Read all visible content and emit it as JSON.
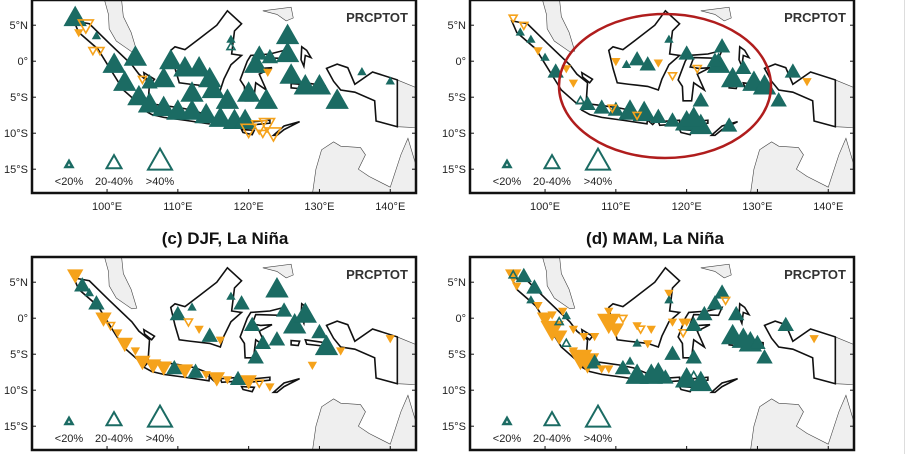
{
  "colors": {
    "wet": "#1b6b63",
    "dry": "#f5a21b",
    "highlight": "#b01d1d",
    "neighbor_land": "#efefef"
  },
  "panel_titles": [
    "(c) DJF, La Niña",
    "(d) MAM, La Niña"
  ],
  "index_label": "PRCPTOT",
  "legend": [
    "<20%",
    "20-40%",
    ">40%"
  ],
  "lat_ticks": [
    {
      "v": 5,
      "label": "5°N"
    },
    {
      "v": 0,
      "label": "0°"
    },
    {
      "v": -5,
      "label": "5°S"
    },
    {
      "v": -10,
      "label": "10°S"
    },
    {
      "v": -15,
      "label": "15°S"
    }
  ],
  "lon_ticks": [
    {
      "v": 100,
      "label": "100°E"
    },
    {
      "v": 110,
      "label": "110°E"
    },
    {
      "v": 120,
      "label": "120°E"
    },
    {
      "v": 130,
      "label": "130°E"
    },
    {
      "v": 140,
      "label": "140°E"
    }
  ],
  "panels": [
    {
      "id": "a",
      "show_title": false,
      "show_xticks": true,
      "highlight": false,
      "stations": [
        [
          95.5,
          6,
          3,
          "up",
          1
        ],
        [
          98.5,
          3.5,
          1,
          "up",
          1
        ],
        [
          117.5,
          3,
          1,
          "up",
          1
        ],
        [
          117.5,
          2,
          1,
          "up",
          0
        ],
        [
          101,
          -0.5,
          3,
          "up",
          1
        ],
        [
          102.5,
          -3,
          3,
          "up",
          1
        ],
        [
          104,
          0.5,
          3,
          "up",
          1
        ],
        [
          109,
          0,
          3,
          "up",
          1
        ],
        [
          111,
          -1,
          3,
          "up",
          1
        ],
        [
          113,
          -1,
          3,
          "up",
          1
        ],
        [
          114.5,
          -2.5,
          3,
          "up",
          1
        ],
        [
          108,
          -2.5,
          3,
          "up",
          1
        ],
        [
          106,
          -3,
          2,
          "up",
          1
        ],
        [
          104.5,
          -5,
          3,
          "up",
          1
        ],
        [
          106,
          -6,
          3,
          "up",
          1
        ],
        [
          108,
          -6.5,
          3,
          "up",
          1
        ],
        [
          110,
          -7,
          3,
          "up",
          1
        ],
        [
          112,
          -7,
          3,
          "up",
          1
        ],
        [
          114,
          -7.5,
          3,
          "up",
          1
        ],
        [
          116,
          -8,
          3,
          "up",
          1
        ],
        [
          118,
          -8.3,
          3,
          "up",
          1
        ],
        [
          119.5,
          -8.3,
          3,
          "up",
          1
        ],
        [
          117,
          -5.5,
          3,
          "up",
          1
        ],
        [
          120,
          -4.5,
          3,
          "up",
          1
        ],
        [
          122.5,
          -5.5,
          3,
          "up",
          1
        ],
        [
          125.5,
          3.5,
          3,
          "up",
          1
        ],
        [
          125.5,
          1,
          3,
          "up",
          1
        ],
        [
          121,
          -0.5,
          3,
          "up",
          1
        ],
        [
          121.5,
          1,
          2,
          "up",
          1
        ],
        [
          123,
          0.5,
          2,
          "up",
          1
        ],
        [
          126,
          -2,
          3,
          "up",
          1
        ],
        [
          128,
          -3.5,
          3,
          "up",
          1
        ],
        [
          130,
          -3.5,
          3,
          "up",
          1
        ],
        [
          132.5,
          -5.5,
          3,
          "up",
          1
        ],
        [
          140,
          -2.8,
          1,
          "up",
          1
        ],
        [
          136,
          -1.5,
          1,
          "up",
          1
        ],
        [
          115,
          -4,
          3,
          "up",
          1
        ],
        [
          112,
          -4.5,
          3,
          "up",
          1
        ],
        [
          97,
          5,
          2,
          "down",
          0
        ],
        [
          96,
          4,
          1,
          "down",
          1
        ],
        [
          98,
          1.5,
          1,
          "down",
          0
        ],
        [
          99,
          1.5,
          1,
          "down",
          0
        ],
        [
          105,
          -2.5,
          1,
          "down",
          0
        ],
        [
          122.7,
          -1.5,
          1,
          "down",
          1
        ],
        [
          120,
          -9.5,
          2,
          "down",
          0
        ],
        [
          121.5,
          -9,
          2,
          "down",
          0
        ],
        [
          122,
          -10,
          1,
          "down",
          0
        ],
        [
          123.5,
          -10,
          2,
          "down",
          0
        ],
        [
          122.6,
          -8.7,
          2,
          "down",
          0
        ]
      ]
    },
    {
      "id": "b",
      "show_title": false,
      "show_xticks": true,
      "highlight": true,
      "stations": [
        [
          95.5,
          6,
          1,
          "down",
          0
        ],
        [
          97,
          5,
          1,
          "down",
          0
        ],
        [
          96.5,
          4,
          1,
          "up",
          1
        ],
        [
          98,
          3,
          1,
          "up",
          1
        ],
        [
          99,
          1.5,
          1,
          "down",
          1
        ],
        [
          100,
          0.5,
          1,
          "up",
          1
        ],
        [
          101.5,
          -1.5,
          2,
          "up",
          1
        ],
        [
          103,
          -1,
          1,
          "down",
          1
        ],
        [
          104,
          -3,
          1,
          "down",
          1
        ],
        [
          105,
          -5.5,
          1,
          "up",
          0
        ],
        [
          106,
          -6,
          2,
          "up",
          1
        ],
        [
          108,
          -6.5,
          2,
          "up",
          1
        ],
        [
          110,
          -6.8,
          2,
          "up",
          1
        ],
        [
          112,
          -7,
          3,
          "up",
          1
        ],
        [
          114,
          -7.2,
          3,
          "up",
          1
        ],
        [
          116,
          -7.8,
          2,
          "up",
          1
        ],
        [
          118,
          -8.3,
          2,
          "up",
          1
        ],
        [
          120,
          -8.5,
          3,
          "up",
          1
        ],
        [
          122,
          -9,
          3,
          "up",
          1
        ],
        [
          121,
          -8,
          3,
          "up",
          1
        ],
        [
          109.5,
          -6.5,
          1,
          "down",
          0
        ],
        [
          113,
          -7.5,
          1,
          "down",
          0
        ],
        [
          110,
          0,
          1,
          "down",
          1
        ],
        [
          111.5,
          -0.5,
          1,
          "up",
          1
        ],
        [
          113,
          0.2,
          2,
          "up",
          1
        ],
        [
          114.5,
          -0.5,
          2,
          "up",
          1
        ],
        [
          116,
          -0.2,
          1,
          "down",
          1
        ],
        [
          118,
          -2,
          1,
          "down",
          0
        ],
        [
          117.5,
          3,
          1,
          "up",
          1
        ],
        [
          120,
          1,
          2,
          "up",
          1
        ],
        [
          121.5,
          -1,
          1,
          "down",
          0
        ],
        [
          124.5,
          -0.5,
          3,
          "up",
          1
        ],
        [
          125,
          2,
          2,
          "up",
          1
        ],
        [
          124,
          0,
          2,
          "up",
          1
        ],
        [
          126.5,
          -2.5,
          3,
          "up",
          1
        ],
        [
          128,
          -1,
          2,
          "up",
          1
        ],
        [
          129.5,
          -3,
          3,
          "up",
          1
        ],
        [
          131,
          -3.5,
          3,
          "up",
          1
        ],
        [
          133,
          -5.5,
          2,
          "up",
          1
        ],
        [
          135,
          -1.5,
          2,
          "up",
          1
        ],
        [
          137,
          -2.8,
          1,
          "down",
          1
        ],
        [
          126,
          -9,
          2,
          "up",
          1
        ],
        [
          122,
          -5.5,
          2,
          "up",
          1
        ]
      ]
    },
    {
      "id": "c",
      "show_title": true,
      "show_xticks": false,
      "highlight": false,
      "stations": [
        [
          95.5,
          6,
          2,
          "down",
          1
        ],
        [
          96.5,
          4.5,
          2,
          "up",
          1
        ],
        [
          97.5,
          3.5,
          1,
          "up",
          1
        ],
        [
          98.5,
          2,
          2,
          "up",
          1
        ],
        [
          99.5,
          0,
          2,
          "down",
          1
        ],
        [
          100.5,
          -1,
          1,
          "down",
          0
        ],
        [
          101.5,
          -2,
          1,
          "down",
          1
        ],
        [
          102.5,
          -3.5,
          2,
          "down",
          1
        ],
        [
          104,
          -4.5,
          1,
          "down",
          1
        ],
        [
          105,
          -6,
          2,
          "down",
          1
        ],
        [
          106.5,
          -6.5,
          2,
          "down",
          1
        ],
        [
          108,
          -6.8,
          2,
          "down",
          1
        ],
        [
          109.5,
          -7,
          2,
          "up",
          1
        ],
        [
          111,
          -7.2,
          2,
          "down",
          1
        ],
        [
          112.5,
          -7.5,
          2,
          "up",
          1
        ],
        [
          114,
          -7.8,
          1,
          "down",
          1
        ],
        [
          115.5,
          -8.3,
          2,
          "down",
          1
        ],
        [
          117,
          -8.5,
          1,
          "down",
          1
        ],
        [
          118.5,
          -8.5,
          2,
          "up",
          1
        ],
        [
          120,
          -8.7,
          2,
          "down",
          1
        ],
        [
          121.5,
          -9,
          1,
          "down",
          0
        ],
        [
          123,
          -9.5,
          1,
          "down",
          1
        ],
        [
          110,
          0.5,
          2,
          "up",
          1
        ],
        [
          111.5,
          -0.5,
          1,
          "down",
          0
        ],
        [
          113,
          -1.5,
          1,
          "down",
          1
        ],
        [
          114.5,
          -2.5,
          2,
          "up",
          1
        ],
        [
          116,
          -3,
          1,
          "down",
          1
        ],
        [
          112,
          1.5,
          1,
          "up",
          1
        ],
        [
          117.5,
          3,
          1,
          "up",
          1
        ],
        [
          119,
          2,
          2,
          "up",
          1
        ],
        [
          120.5,
          -1,
          2,
          "up",
          1
        ],
        [
          122,
          -3.5,
          2,
          "up",
          1
        ],
        [
          121,
          -5.5,
          2,
          "up",
          1
        ],
        [
          124,
          4,
          3,
          "up",
          1
        ],
        [
          125,
          1,
          2,
          "up",
          1
        ],
        [
          126.5,
          -1,
          3,
          "up",
          1
        ],
        [
          128,
          0.5,
          3,
          "up",
          1
        ],
        [
          130,
          -2,
          2,
          "up",
          1
        ],
        [
          131,
          -4,
          3,
          "up",
          1
        ],
        [
          133,
          -4.5,
          1,
          "down",
          1
        ],
        [
          129,
          -6.5,
          1,
          "down",
          1
        ],
        [
          140,
          -2.8,
          1,
          "down",
          1
        ],
        [
          124,
          -3,
          2,
          "up",
          1
        ]
      ]
    },
    {
      "id": "d",
      "show_title": true,
      "show_xticks": false,
      "highlight": false,
      "stations": [
        [
          95.5,
          6,
          2,
          "down",
          1
        ],
        [
          95.5,
          6,
          1,
          "up",
          0
        ],
        [
          97,
          5.8,
          2,
          "up",
          1
        ],
        [
          98.5,
          4.2,
          2,
          "up",
          1
        ],
        [
          96,
          4.5,
          1,
          "down",
          1
        ],
        [
          98,
          2.5,
          1,
          "up",
          1
        ],
        [
          99,
          1.8,
          1,
          "down",
          1
        ],
        [
          100,
          0,
          2,
          "down",
          1
        ],
        [
          101,
          -1.5,
          3,
          "down",
          1
        ],
        [
          102,
          -2.5,
          2,
          "down",
          1
        ],
        [
          103,
          -3.5,
          1,
          "up",
          0
        ],
        [
          104,
          -4.5,
          1,
          "down",
          1
        ],
        [
          105,
          -5.5,
          3,
          "down",
          1
        ],
        [
          106,
          -6,
          3,
          "down",
          1
        ],
        [
          107,
          -6.2,
          2,
          "up",
          1
        ],
        [
          108,
          -7,
          1,
          "down",
          1
        ],
        [
          109,
          -7,
          1,
          "down",
          1
        ],
        [
          101,
          0.5,
          1,
          "down",
          1
        ],
        [
          102.5,
          1,
          1,
          "down",
          1
        ],
        [
          103,
          0.3,
          1,
          "up",
          1
        ],
        [
          102,
          -0.5,
          1,
          "up",
          0
        ],
        [
          104,
          -1.5,
          1,
          "down",
          1
        ],
        [
          105.5,
          -2.5,
          1,
          "down",
          1
        ],
        [
          107,
          -2.5,
          1,
          "down",
          1
        ],
        [
          109,
          1,
          1,
          "down",
          1
        ],
        [
          109,
          -0.5,
          3,
          "down",
          1
        ],
        [
          110,
          -1.5,
          2,
          "down",
          1
        ],
        [
          111,
          0,
          1,
          "down",
          0
        ],
        [
          113,
          -1,
          1,
          "down",
          1
        ],
        [
          113.5,
          -1.5,
          1,
          "down",
          0
        ],
        [
          115,
          -1.5,
          1,
          "down",
          1
        ],
        [
          113,
          -3.5,
          1,
          "up",
          1
        ],
        [
          114.5,
          -3.5,
          1,
          "down",
          1
        ],
        [
          117.5,
          3.5,
          1,
          "down",
          1
        ],
        [
          117.5,
          2.5,
          1,
          "up",
          1
        ],
        [
          118,
          -0.5,
          1,
          "down",
          1
        ],
        [
          119.5,
          -0.5,
          1,
          "down",
          1
        ],
        [
          119.5,
          -2,
          1,
          "down",
          0
        ],
        [
          120,
          -0.5,
          1,
          "down",
          1
        ],
        [
          118,
          -5,
          2,
          "up",
          1
        ],
        [
          121,
          -5.5,
          2,
          "up",
          1
        ],
        [
          112,
          -6,
          1,
          "up",
          1
        ],
        [
          111,
          -7,
          2,
          "up",
          1
        ],
        [
          113,
          -8,
          3,
          "up",
          1
        ],
        [
          115,
          -8,
          3,
          "up",
          1
        ],
        [
          116,
          -7.8,
          3,
          "up",
          1
        ],
        [
          117,
          -8.3,
          2,
          "up",
          1
        ],
        [
          120,
          -8.5,
          3,
          "up",
          1
        ],
        [
          121,
          -8.5,
          2,
          "up",
          0
        ],
        [
          122,
          -9,
          3,
          "up",
          1
        ],
        [
          121,
          -1,
          2,
          "up",
          1
        ],
        [
          122.5,
          0.5,
          2,
          "up",
          1
        ],
        [
          124,
          2,
          2,
          "up",
          1
        ],
        [
          125,
          3.5,
          2,
          "up",
          1
        ],
        [
          125.5,
          2.5,
          1,
          "down",
          0
        ],
        [
          127,
          0.5,
          2,
          "up",
          1
        ],
        [
          126.5,
          -2.5,
          3,
          "up",
          1
        ],
        [
          128,
          -3,
          3,
          "up",
          1
        ],
        [
          129,
          -3.5,
          3,
          "up",
          1
        ],
        [
          130,
          -3.5,
          2,
          "up",
          1
        ],
        [
          131,
          -5.5,
          2,
          "up",
          1
        ],
        [
          134,
          -1,
          2,
          "up",
          1
        ],
        [
          138,
          -2.8,
          1,
          "down",
          1
        ]
      ]
    }
  ]
}
